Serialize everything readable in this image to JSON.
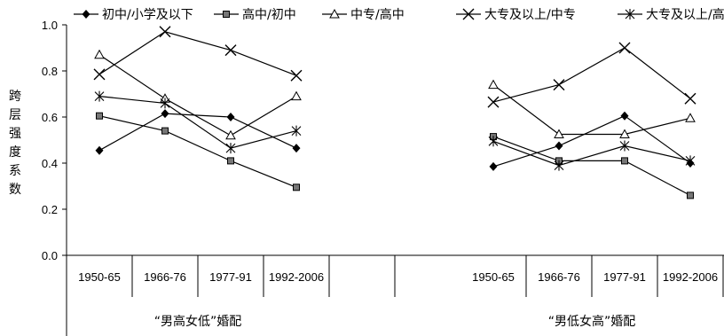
{
  "chart_data": {
    "type": "line",
    "ylabel": "跨层强度系数",
    "ylim": [
      0,
      1.0
    ],
    "yticks": [
      "0.0",
      "0.2",
      "0.4",
      "0.6",
      "0.8",
      "1.0"
    ],
    "grid": false,
    "legend_position": "top",
    "groups": [
      {
        "label": "“男高女低”婚配",
        "categories": [
          "1950-65",
          "1966-76",
          "1977-91",
          "1992-2006"
        ]
      },
      {
        "label": "“男低女高”婚配",
        "categories": [
          "1950-65",
          "1966-76",
          "1977-91",
          "1992-2006"
        ]
      }
    ],
    "series": [
      {
        "name": "初中/小学及以下",
        "marker": "diamond",
        "values": [
          [
            0.455,
            0.615,
            0.6,
            0.465
          ],
          [
            0.385,
            0.475,
            0.605,
            0.4
          ]
        ]
      },
      {
        "name": "高中/初中",
        "marker": "square",
        "values": [
          [
            0.605,
            0.54,
            0.41,
            0.295
          ],
          [
            0.515,
            0.41,
            0.41,
            0.26
          ]
        ]
      },
      {
        "name": "中专/高中",
        "marker": "triangle",
        "values": [
          [
            0.87,
            0.68,
            0.52,
            0.69
          ],
          [
            0.74,
            0.525,
            0.525,
            0.595
          ]
        ]
      },
      {
        "name": "大专及以上/中专",
        "marker": "x",
        "values": [
          [
            0.785,
            0.97,
            0.89,
            0.78
          ],
          [
            0.665,
            0.74,
            0.9,
            0.68
          ]
        ]
      },
      {
        "name": "大专及以上/高中",
        "marker": "star",
        "values": [
          [
            0.69,
            0.66,
            0.465,
            0.54
          ],
          [
            0.495,
            0.39,
            0.475,
            0.41
          ]
        ]
      }
    ]
  }
}
